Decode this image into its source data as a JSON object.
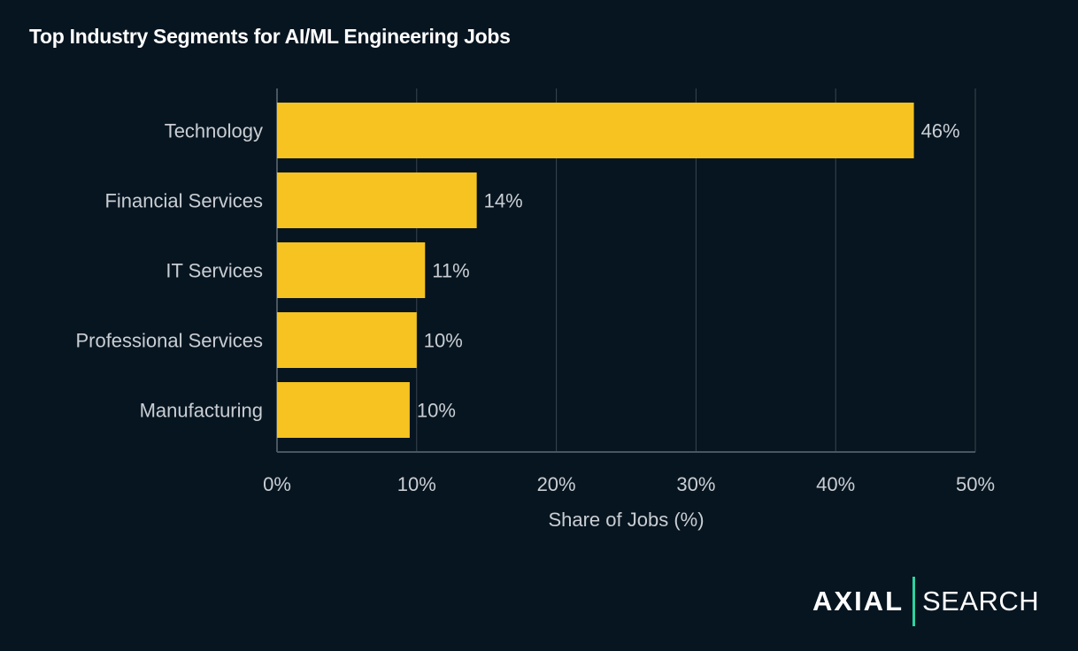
{
  "chart_data": {
    "type": "bar",
    "orientation": "horizontal",
    "title": "Top Industry Segments for AI/ML Engineering Jobs",
    "xlabel": "Share of Jobs (%)",
    "ylabel": "",
    "categories": [
      "Technology",
      "Financial Services",
      "IT Services",
      "Professional Services",
      "Manufacturing"
    ],
    "values": [
      45.6,
      14.3,
      10.6,
      10.0,
      9.5
    ],
    "data_labels": [
      "46%",
      "14%",
      "11%",
      "10%",
      "10%"
    ],
    "xlim": [
      0,
      50
    ],
    "xticks": [
      0,
      10,
      20,
      30,
      40,
      50
    ],
    "xtick_labels": [
      "0%",
      "10%",
      "20%",
      "30%",
      "40%",
      "50%"
    ],
    "grid": "vertical",
    "legend": "none",
    "colors": {
      "bar": "#f6c320",
      "background": "#071520",
      "grid": "#3a4650",
      "text": "#c9ced3"
    }
  },
  "logo": {
    "left": "AXIAL",
    "right": "SEARCH",
    "accent": "#2ed3a0"
  }
}
